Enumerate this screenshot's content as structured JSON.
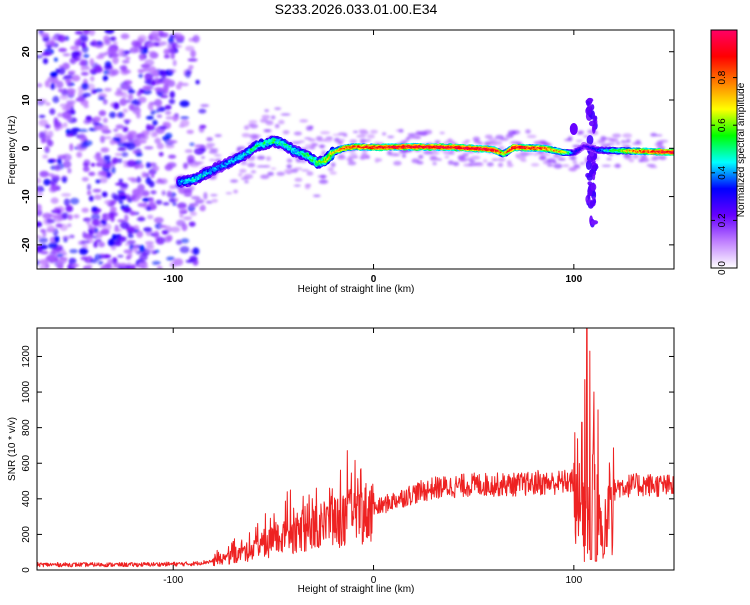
{
  "title": "S233.2026.033.01.00.E34",
  "chart_data": [
    {
      "type": "heatmap",
      "name": "spectrogram",
      "xlabel": "Height of straight line (km)",
      "ylabel": "Frequency (Hz)",
      "xlim": [
        -168,
        150
      ],
      "ylim": [
        -25,
        24.5
      ],
      "xticks": [
        -100,
        0,
        100
      ],
      "xtick_labels": [
        "-100",
        "0",
        "100"
      ],
      "yticks": [
        -20,
        -10,
        0,
        10,
        20
      ],
      "ytick_labels": [
        "-20",
        "-10",
        "0",
        "10",
        "20"
      ],
      "colorbar": {
        "label": "Normalized spectral amplitude",
        "range": [
          0,
          1
        ],
        "ticks": [
          0.0,
          0.2,
          0.4,
          0.6,
          0.8
        ],
        "tick_labels": [
          "0.0",
          "0.2",
          "0.4",
          "0.6",
          "0.8"
        ],
        "colors": [
          "#ffffff",
          "#c080ff",
          "#6600ff",
          "#0000ff",
          "#00ffff",
          "#00ff00",
          "#ffff00",
          "#ff8000",
          "#ff0000",
          "#ff0066"
        ]
      },
      "signal_track": {
        "x": [
          -97,
          -90,
          -85,
          -78,
          -72,
          -65,
          -58,
          -50,
          -45,
          -40,
          -33,
          -28,
          -24,
          -20,
          -15,
          -10,
          0,
          20,
          40,
          60,
          65,
          70,
          85,
          95,
          100,
          105,
          112,
          130,
          150
        ],
        "freq": [
          -7,
          -6.5,
          -5.5,
          -4,
          -3,
          -1.5,
          0.5,
          1.5,
          1.0,
          -0.5,
          -1.5,
          -3,
          -2.5,
          -0.8,
          0,
          0.3,
          0.2,
          0.3,
          0.2,
          -0.3,
          -1.2,
          0.2,
          0,
          -0.8,
          -1,
          0.5,
          -0.4,
          -0.6,
          -0.8
        ],
        "amp": [
          0.35,
          0.4,
          0.4,
          0.35,
          0.35,
          0.4,
          0.45,
          0.45,
          0.45,
          0.4,
          0.45,
          0.5,
          0.55,
          0.6,
          0.7,
          0.75,
          0.8,
          0.85,
          0.85,
          0.85,
          0.6,
          0.85,
          0.75,
          0.6,
          0.3,
          0.2,
          0.3,
          0.7,
          0.9
        ]
      },
      "noise_region_x": [
        -168,
        -82
      ],
      "burst_x": 109,
      "burst_freq_range": [
        -16,
        10
      ]
    },
    {
      "type": "line",
      "name": "snr",
      "xlabel": "Height of straight line (km)",
      "ylabel": "SNR (10 * v/v)",
      "xlim": [
        -168,
        150
      ],
      "ylim": [
        0,
        1360
      ],
      "xticks": [
        -100,
        0,
        100
      ],
      "xtick_labels": [
        "-100",
        "0",
        "100"
      ],
      "yticks": [
        0,
        200,
        400,
        600,
        800,
        1000,
        1200
      ],
      "ytick_labels": [
        "0",
        "200",
        "400",
        "600",
        "800",
        "1000",
        "1200"
      ],
      "color": "#ee2222",
      "envelope": {
        "x": [
          -168,
          -120,
          -90,
          -80,
          -72,
          -60,
          -50,
          -40,
          -30,
          -20,
          -10,
          0,
          10,
          20,
          30,
          50,
          70,
          90,
          100,
          103,
          106,
          108,
          110,
          113,
          115,
          118,
          122,
          135,
          150
        ],
        "y": [
          30,
          30,
          35,
          50,
          70,
          110,
          160,
          200,
          240,
          270,
          300,
          340,
          390,
          430,
          460,
          480,
          480,
          490,
          500,
          330,
          220,
          320,
          450,
          220,
          200,
          420,
          470,
          480,
          470
        ]
      },
      "peaks": [
        {
          "x": -70,
          "y": 160
        },
        {
          "x": -62,
          "y": 210
        },
        {
          "x": -43,
          "y": 440
        },
        {
          "x": -32,
          "y": 300
        },
        {
          "x": -22,
          "y": 460
        },
        {
          "x": -11,
          "y": 545
        },
        {
          "x": 0,
          "y": 430
        },
        {
          "x": 82,
          "y": 560
        },
        {
          "x": 100,
          "y": 600
        },
        {
          "x": 104,
          "y": 830
        },
        {
          "x": 105.5,
          "y": 1070
        },
        {
          "x": 106.5,
          "y": 1360
        },
        {
          "x": 108,
          "y": 1230
        },
        {
          "x": 110,
          "y": 1000
        },
        {
          "x": 112,
          "y": 900
        },
        {
          "x": 115,
          "y": 620
        }
      ],
      "dips": [
        {
          "x": 108.5,
          "y": 60
        },
        {
          "x": 111,
          "y": 50
        },
        {
          "x": 115,
          "y": 90
        }
      ]
    }
  ]
}
